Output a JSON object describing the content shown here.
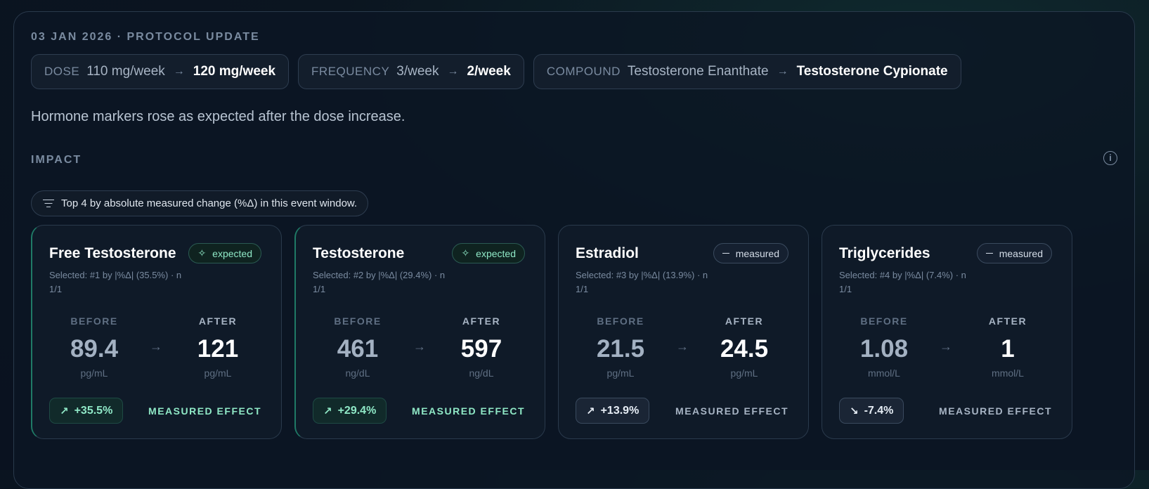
{
  "header": {
    "date_line": "03 JAN 2026 · PROTOCOL UPDATE"
  },
  "changes": [
    {
      "label": "DOSE",
      "from": "110 mg/week",
      "to": "120 mg/week"
    },
    {
      "label": "FREQUENCY",
      "from": "3/week",
      "to": "2/week"
    },
    {
      "label": "COMPOUND",
      "from": "Testosterone Enanthate",
      "to": "Testosterone Cypionate"
    }
  ],
  "summary": "Hormone markers rose as expected after the dose increase.",
  "impact": {
    "label": "IMPACT",
    "info_icon": "i",
    "filter_text": "Top 4 by absolute measured change (%Δ) in this event window."
  },
  "labels": {
    "before": "BEFORE",
    "after": "AFTER",
    "effect": "MEASURED EFFECT",
    "arrow": "→"
  },
  "cards": [
    {
      "title": "Free Testosterone",
      "badge": "expected",
      "badge_icon": "sparkle-icon",
      "meta": "Selected: #1 by |%Δ| (35.5%) · n 1/1",
      "before": "89.4",
      "after": "121",
      "unit_before": "pg/mL",
      "unit_after": "pg/mL",
      "delta": "+35.5%",
      "trend": "trending-up"
    },
    {
      "title": "Testosterone",
      "badge": "expected",
      "badge_icon": "sparkle-icon",
      "meta": "Selected: #2 by |%Δ| (29.4%) · n 1/1",
      "before": "461",
      "after": "597",
      "unit_before": "ng/dL",
      "unit_after": "ng/dL",
      "delta": "+29.4%",
      "trend": "trending-up"
    },
    {
      "title": "Estradiol",
      "badge": "measured",
      "badge_icon": "minus-icon",
      "meta": "Selected: #3 by |%Δ| (13.9%) · n 1/1",
      "before": "21.5",
      "after": "24.5",
      "unit_before": "pg/mL",
      "unit_after": "pg/mL",
      "delta": "+13.9%",
      "trend": "trending-up"
    },
    {
      "title": "Triglycerides",
      "badge": "measured",
      "badge_icon": "minus-icon",
      "meta": "Selected: #4 by |%Δ| (7.4%) · n 1/1",
      "before": "1.08",
      "after": "1",
      "unit_before": "mmol/L",
      "unit_after": "mmol/L",
      "delta": "-7.4%",
      "trend": "trending-down"
    }
  ],
  "colors": {
    "accent": "#8fe8c6",
    "background": "#0a1220",
    "card_border": "#2a3a4c"
  }
}
